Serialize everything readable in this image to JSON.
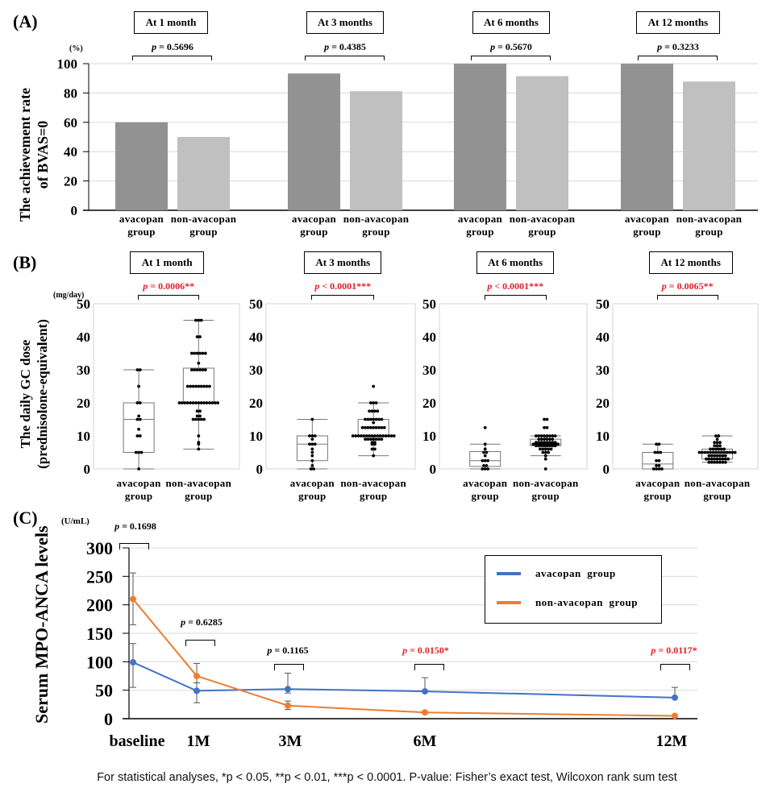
{
  "figure": {
    "footnote": "For statistical analyses, *p < 0.05, **p < 0.01, ***p < 0.0001. P-value:  Fisher’s exact test, Wilcoxon rank sum test"
  },
  "colors": {
    "avacopan_bar": "#929292",
    "non_avacopan_bar": "#c0c0c0",
    "avacopan_line": "#4472c4",
    "non_avacopan_line": "#ed7d31",
    "significant_p": "#e0202a"
  },
  "chart_data": [
    {
      "id": "A",
      "panel_label": "(A)",
      "type": "bar",
      "ylabel_line1": "The  achievement rate",
      "ylabel_line2": "of BVAS=0",
      "unit": "(%)",
      "ylim": [
        0,
        100
      ],
      "yticks": [
        0,
        20,
        40,
        60,
        80,
        100
      ],
      "grid": true,
      "group_labels": [
        "avacopan",
        "group",
        "non-avacopan",
        "group"
      ],
      "series_names": [
        "avacopan group",
        "non-avacopan group"
      ],
      "timepoints": [
        {
          "title": "At 1 month",
          "p_prefix": "p",
          "p_text": " = 0.5696",
          "significant": false,
          "values": [
            60,
            50
          ]
        },
        {
          "title": "At 3 months",
          "p_prefix": "p",
          "p_text": " = 0.4385",
          "significant": false,
          "values": [
            93.3,
            81.2
          ]
        },
        {
          "title": "At 6 months",
          "p_prefix": "p",
          "p_text": " = 0.5670",
          "significant": false,
          "values": [
            100,
            91.5
          ]
        },
        {
          "title": "At 12 months",
          "p_prefix": "p",
          "p_text": " = 0.3233",
          "significant": false,
          "values": [
            100,
            87.8
          ]
        }
      ]
    },
    {
      "id": "B",
      "panel_label": "(B)",
      "type": "box",
      "ylabel_line1": "The daily  GC dose",
      "ylabel_line2": "(prednisolone-equivalent)",
      "unit": "(mg/day)",
      "ylim": [
        0,
        50
      ],
      "yticks": [
        0,
        10,
        20,
        30,
        40,
        50
      ],
      "timepoints": [
        {
          "title": "At 1 month",
          "p_prefix": "p",
          "p_text": " = 0.0006**",
          "significant": true,
          "groups": [
            {
              "name": "avacopan group",
              "min": 0,
              "q1": 5,
              "median": 15,
              "q3": 20,
              "max": 30,
              "points": [
                0,
                5,
                5,
                5,
                10,
                10,
                12,
                15,
                15,
                16,
                20,
                20,
                25,
                30,
                30
              ]
            },
            {
              "name": "non-avacopan group",
              "min": 6,
              "q1": 20,
              "median": 20,
              "q3": 30.5,
              "max": 45,
              "points": [
                6,
                7.5,
                8,
                10,
                15,
                15,
                15,
                15,
                15,
                16,
                16,
                17.5,
                17.5,
                20,
                20,
                20,
                20,
                20,
                20,
                20,
                20,
                20,
                20,
                20,
                20,
                20,
                20,
                20,
                25,
                25,
                25,
                25,
                25,
                25,
                25,
                25,
                25,
                30,
                30,
                30,
                30,
                30,
                30,
                32,
                35,
                35,
                35,
                35,
                35,
                35,
                40,
                40,
                45,
                45,
                45
              ]
            }
          ]
        },
        {
          "title": "At 3 months",
          "p_prefix": "p",
          "p_text": " < 0.0001***",
          "significant": true,
          "groups": [
            {
              "name": "avacopan group",
              "min": 0,
              "q1": 2.5,
              "median": 7.5,
              "q3": 10,
              "max": 15,
              "points": [
                0,
                0,
                1,
                2.5,
                4,
                5,
                6,
                7.5,
                7.5,
                7.5,
                9,
                10,
                10,
                10,
                15
              ]
            },
            {
              "name": "non-avacopan group",
              "min": 4,
              "q1": 10,
              "median": 10,
              "q3": 15,
              "max": 20,
              "points": [
                4,
                6,
                6,
                7.5,
                7.5,
                8,
                8,
                9,
                9,
                9,
                9,
                9,
                9,
                9,
                10,
                10,
                10,
                10,
                10,
                10,
                10,
                10,
                10,
                10,
                10,
                10,
                10,
                10,
                10,
                10,
                12.5,
                12.5,
                12.5,
                12.5,
                12.5,
                12.5,
                12.5,
                12.5,
                12.5,
                14,
                15,
                15,
                15,
                15,
                15,
                15,
                15,
                17.5,
                17.5,
                17.5,
                17.5,
                20,
                20,
                20,
                25
              ]
            }
          ]
        },
        {
          "title": "At 6 months",
          "p_prefix": "p",
          "p_text": " < 0.0001***",
          "significant": true,
          "groups": [
            {
              "name": "avacopan group",
              "min": 0,
              "q1": 0.75,
              "median": 2.5,
              "q3": 5.25,
              "max": 7.5,
              "points": [
                0,
                0,
                0,
                1,
                1,
                2.5,
                2.5,
                2.5,
                4,
                5,
                5,
                6,
                7.5,
                12.5
              ]
            },
            {
              "name": "non-avacopan group",
              "min": 4,
              "q1": 7,
              "median": 7.5,
              "q3": 9,
              "max": 10,
              "points": [
                0,
                3,
                4,
                5,
                5,
                5,
                6,
                6,
                6,
                6,
                6,
                7,
                7,
                7,
                7,
                7,
                7,
                7,
                7,
                7.5,
                7.5,
                7.5,
                7.5,
                7.5,
                7.5,
                7.5,
                7.5,
                7.5,
                7.5,
                8,
                8,
                8,
                8,
                8,
                8,
                8,
                8,
                9,
                9,
                9,
                9,
                9,
                9,
                10,
                10,
                10,
                10,
                10,
                10,
                10,
                10,
                12.5,
                12.5,
                15,
                15
              ]
            }
          ]
        },
        {
          "title": "At 12 months",
          "p_prefix": "p",
          "p_text": " = 0.0065**",
          "significant": true,
          "groups": [
            {
              "name": "avacopan group",
              "min": 0,
              "q1": 0,
              "median": 1.5,
              "q3": 5,
              "max": 7.5,
              "points": [
                0,
                0,
                0,
                0,
                1,
                1,
                2.5,
                2.5,
                5,
                5,
                5,
                7.5,
                7.5
              ]
            },
            {
              "name": "non-avacopan group",
              "min": 2,
              "q1": 3,
              "median": 5,
              "q3": 6,
              "max": 10,
              "points": [
                2,
                2,
                2,
                2,
                2,
                2,
                2,
                3,
                3,
                3,
                3,
                3,
                3,
                3,
                3,
                3,
                4,
                4,
                4,
                4,
                4,
                4,
                4,
                5,
                5,
                5,
                5,
                5,
                5,
                5,
                5,
                5,
                5,
                5,
                5,
                5,
                5,
                6,
                6,
                6,
                6,
                6,
                6,
                7,
                7,
                7,
                8,
                8,
                8,
                9,
                10,
                10
              ]
            }
          ]
        }
      ],
      "group_labels": [
        "avacopan",
        "group",
        "non-avacopan",
        "group"
      ]
    },
    {
      "id": "C",
      "panel_label": "(C)",
      "type": "line",
      "ylabel": "Serum MPO-ANCA levels",
      "unit": "(U/mL)",
      "ylim": [
        0,
        300
      ],
      "yticks": [
        0,
        50,
        100,
        150,
        200,
        250,
        300
      ],
      "grid": true,
      "legend_position": "top-right",
      "x": [
        "baseline",
        "1M",
        "3M",
        "6M",
        "12M"
      ],
      "x_months": [
        0,
        1,
        3,
        6,
        12
      ],
      "series": [
        {
          "name": "avacopan  group",
          "values": [
            99,
            49,
            52,
            48,
            37
          ],
          "err_low": [
            55,
            28,
            45,
            null,
            null
          ],
          "err_high": [
            132,
            63,
            80,
            72,
            55
          ]
        },
        {
          "name": "non-avacopan  group",
          "values": [
            210,
            75,
            23,
            11,
            5
          ],
          "err_low": [
            165,
            63,
            16,
            null,
            null
          ],
          "err_high": [
            256,
            97,
            31,
            null,
            null
          ]
        }
      ],
      "pvalues": [
        {
          "at": "baseline",
          "p_prefix": "p",
          "p_text": " = 0.1698",
          "significant": false
        },
        {
          "at": "1M",
          "p_prefix": "p",
          "p_text": " = 0.6285",
          "significant": false
        },
        {
          "at": "3M",
          "p_prefix": "p",
          "p_text": " = 0.1165",
          "significant": false
        },
        {
          "at": "6M",
          "p_prefix": "p",
          "p_text": " = 0.0150*",
          "significant": true
        },
        {
          "at": "12M",
          "p_prefix": "p",
          "p_text": " = 0.0117*",
          "significant": true
        }
      ]
    }
  ]
}
